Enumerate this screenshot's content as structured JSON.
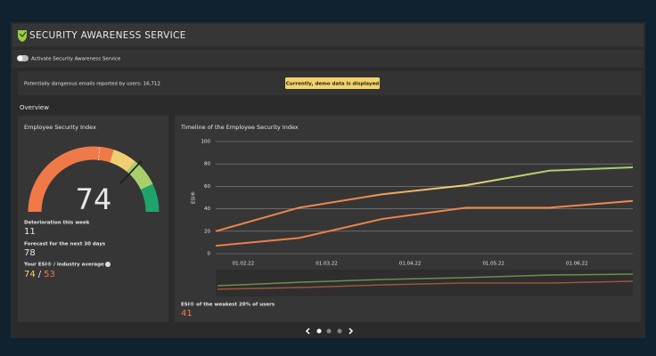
{
  "header": {
    "title": "SECURITY AWARENESS SERVICE"
  },
  "toggle": {
    "label": "Activate Security Awareness Service"
  },
  "info": {
    "reported_label": "Potentially dangerous emails reported by users: 16,712",
    "demo_badge": "Currently, demo data is displayed"
  },
  "section": "Overview",
  "index_panel": {
    "title": "Employee Security Index",
    "gauge": {
      "value": 74,
      "min": 0,
      "max": 100,
      "reference": 53,
      "bands": [
        {
          "from": 0,
          "to": 60,
          "color": "#ef7a48"
        },
        {
          "from": 60,
          "to": 72,
          "color": "#f0cf74"
        },
        {
          "from": 72,
          "to": 86,
          "color": "#a9cf6c"
        },
        {
          "from": 86,
          "to": 100,
          "color": "#1fa36b"
        }
      ]
    },
    "deterioration": {
      "label": "Deterioration this week",
      "value": 11
    },
    "forecast": {
      "label": "Forecast for the next 30 days",
      "value": 78
    },
    "comparison": {
      "label": "Your ESI® / industry average",
      "yours": 74,
      "separator": "/",
      "industry": 53
    }
  },
  "timeline_panel": {
    "title": "Timeline of the Employee Security Index",
    "chart": {
      "type": "line",
      "y_label": "ESI®",
      "xticks": [
        "01.02.22",
        "01.03.22",
        "01.04.22",
        "01.05.22",
        "01.06.22"
      ],
      "ylim": [
        0,
        100
      ],
      "yticks": [
        0,
        20,
        40,
        60,
        80,
        100
      ],
      "grid": true,
      "series": [
        {
          "values": [
            20,
            41,
            53,
            61,
            74,
            77
          ]
        },
        {
          "values": [
            7,
            14,
            31,
            41,
            41,
            47
          ]
        }
      ]
    },
    "weakest": {
      "label": "ESI® of the weakest 20% of users",
      "value": 41
    }
  }
}
